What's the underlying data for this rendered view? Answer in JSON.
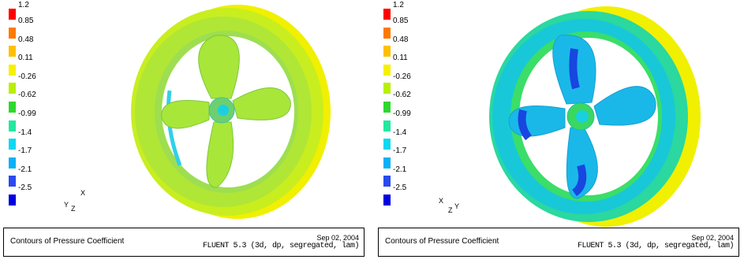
{
  "colorbar": {
    "max_label": "1.2",
    "levels": [
      {
        "label": "0.85",
        "color": "#ff0000"
      },
      {
        "label": "0.48",
        "color": "#ff7a00"
      },
      {
        "label": "0.11",
        "color": "#ffc000"
      },
      {
        "label": "-0.26",
        "color": "#f7f000"
      },
      {
        "label": "-0.62",
        "color": "#b8f000"
      },
      {
        "label": "-0.99",
        "color": "#2ed82e"
      },
      {
        "label": "-1.4",
        "color": "#22e8a0"
      },
      {
        "label": "-1.7",
        "color": "#10d8f0"
      },
      {
        "label": "-2.1",
        "color": "#0ab0f8"
      },
      {
        "label": "-2.5",
        "color": "#2a4af0"
      },
      {
        "label": "",
        "color": "#0000e0"
      }
    ]
  },
  "panels": [
    {
      "axes": {
        "a": "Y",
        "b": "Z",
        "c": "X"
      },
      "caption_title": "Contours of Pressure Coefficient",
      "caption_date": "Sep 02, 2004",
      "caption_version": "FLUENT 5.3 (3d, dp, segregated, lam)"
    },
    {
      "axes": {
        "a": "X",
        "b": "Z",
        "c": "Y"
      },
      "caption_title": "Contours of Pressure Coefficient",
      "caption_date": "Sep 02, 2004",
      "caption_version": "FLUENT 5.3 (3d, dp, segregated, lam)"
    }
  ],
  "colors": {
    "duct_outer": "#f0f000",
    "duct_inner_left": "#b8ea2a",
    "blade_left": "#a8e63a",
    "duct_inner_right": "#22d8a8",
    "blade_right": "#1ab8e8",
    "blade_right_core": "#1846e0"
  }
}
